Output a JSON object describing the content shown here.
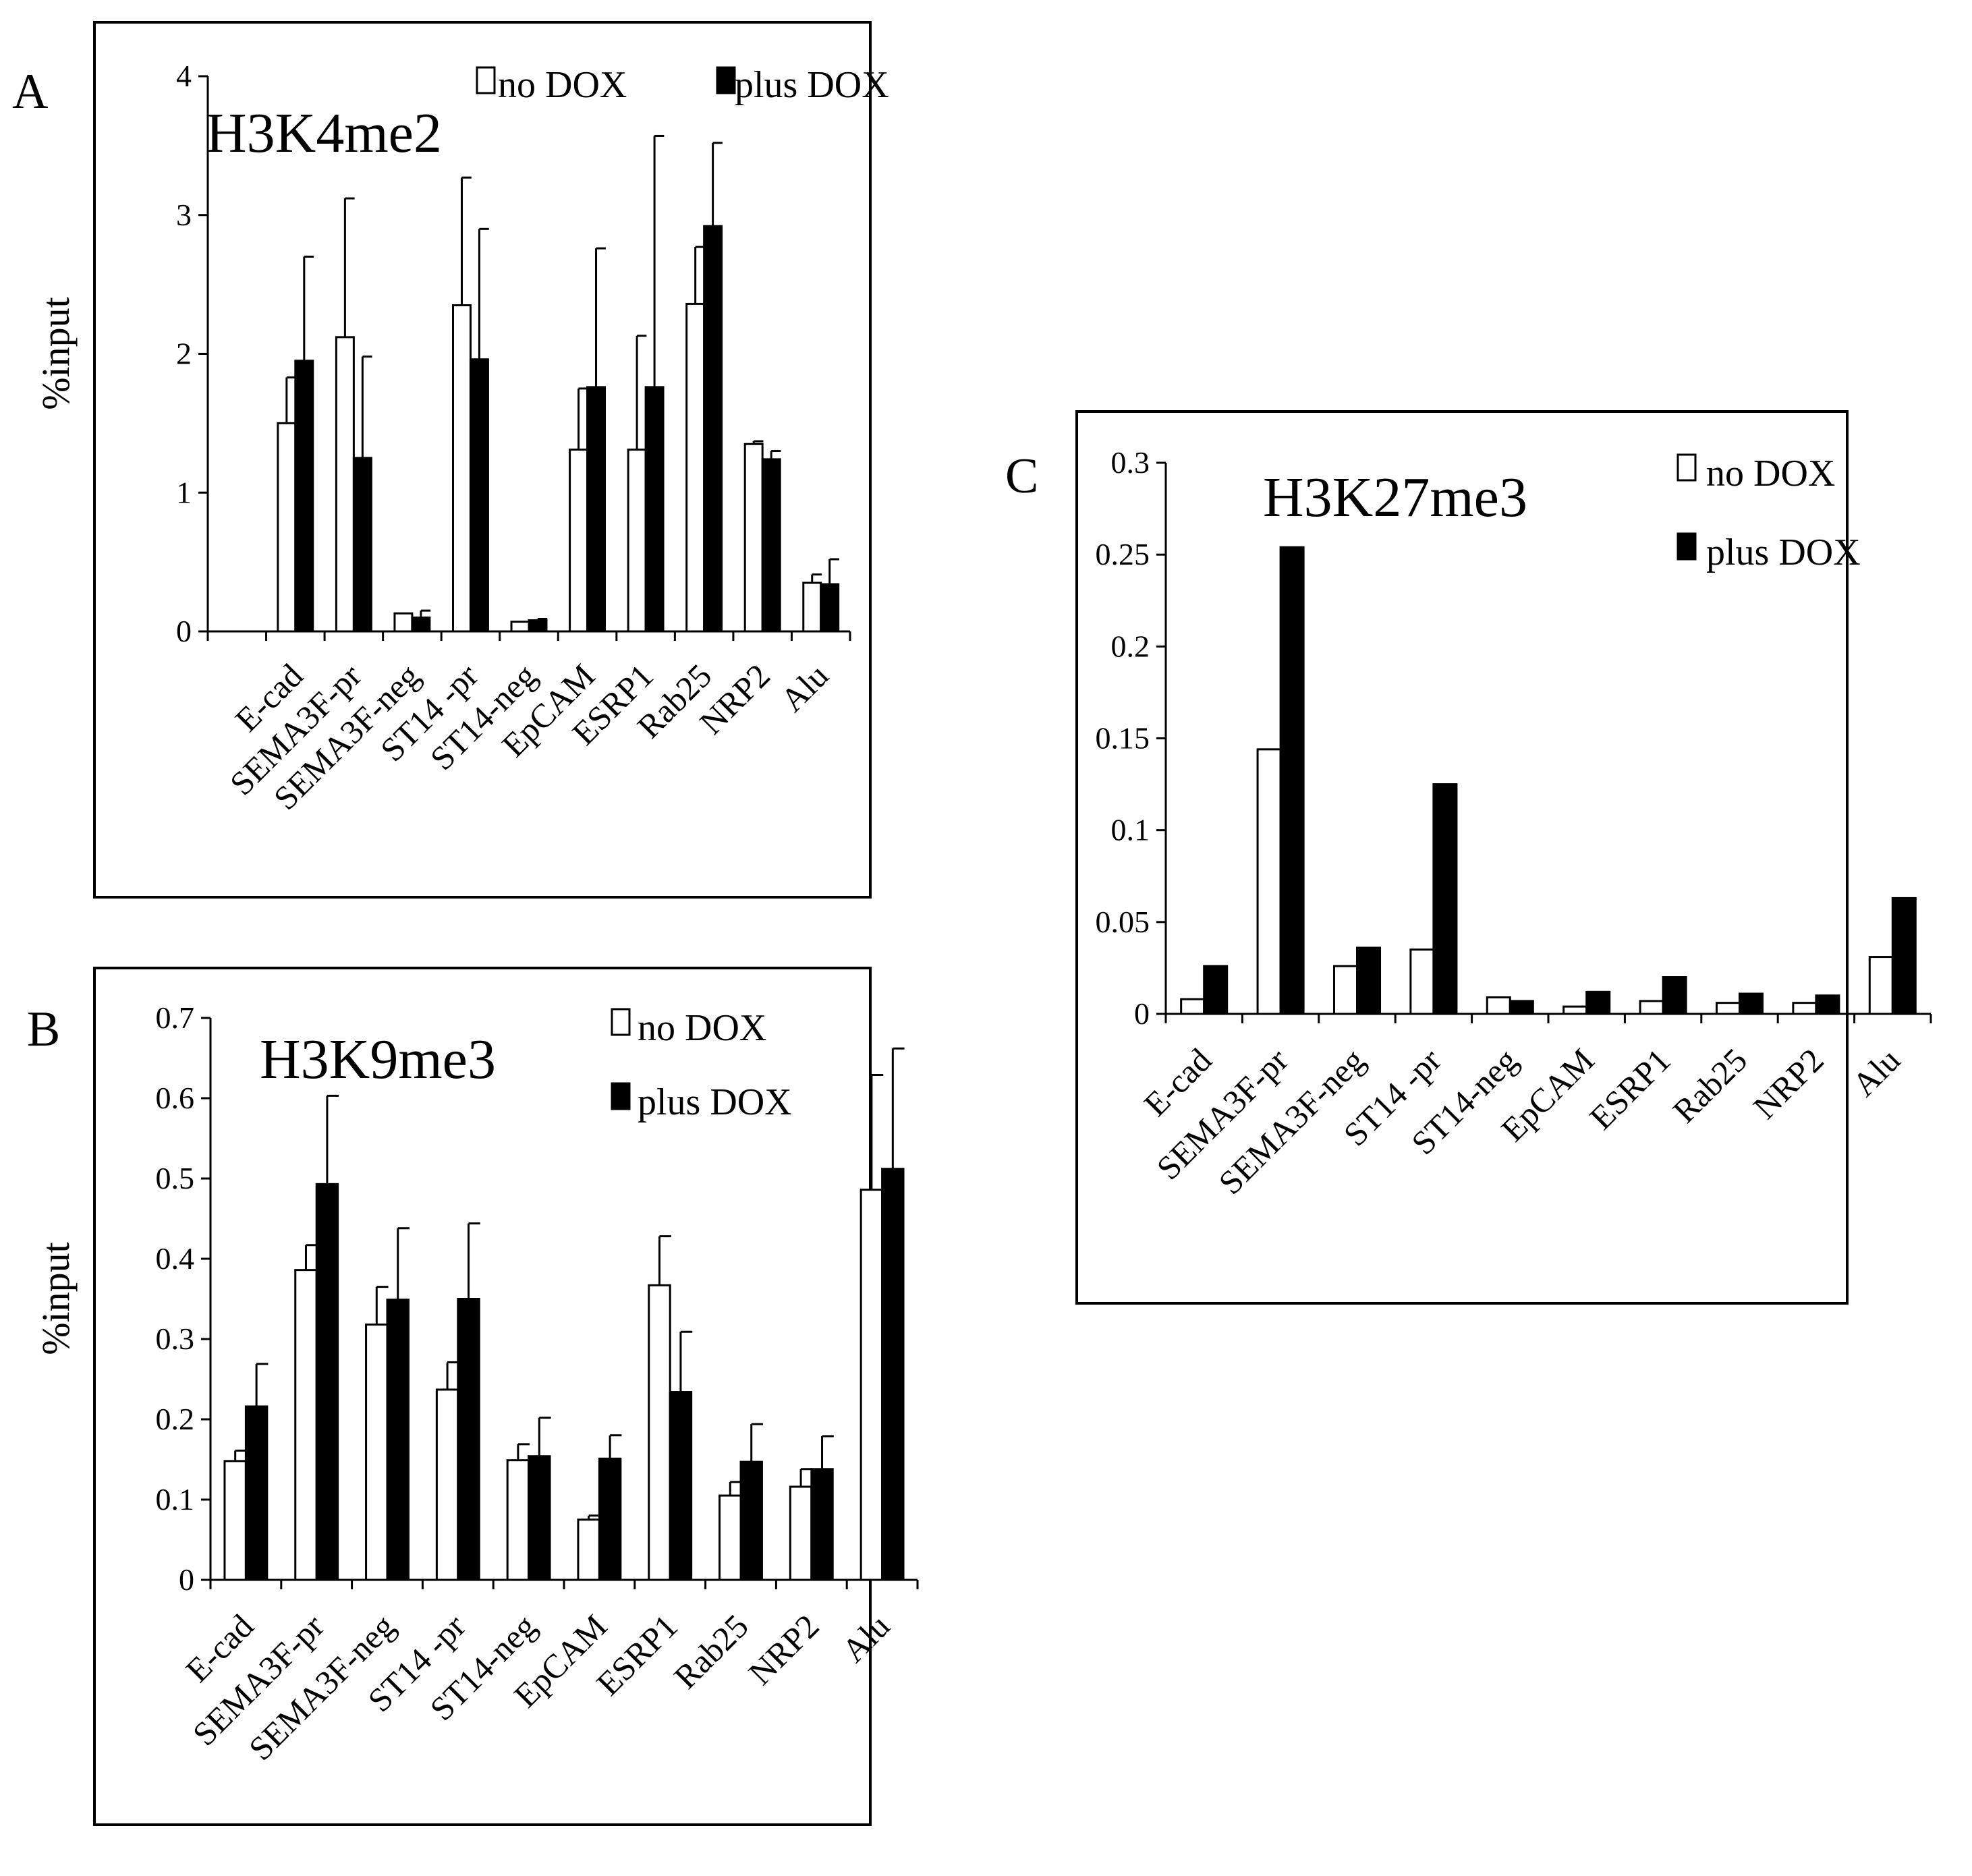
{
  "chart_data": [
    {
      "panel": "A",
      "type": "bar",
      "title": "H3K4me2",
      "ylabel": "%input",
      "xlabel": "",
      "ylim": [
        0,
        4
      ],
      "yticks": [
        "0",
        "1",
        "2",
        "3",
        "4"
      ],
      "categories": [
        "E-cad",
        "SEMA3F-pr",
        "SEMA3F-neg",
        "ST14 -pr",
        "ST14-neg",
        "EpCAM",
        "ESRP1",
        "Rab25",
        "NRP2",
        "Alu"
      ],
      "series": [
        {
          "name": "no DOX",
          "color": "#ffffff",
          "values": [
            1.5,
            2.12,
            0.13,
            2.35,
            0.07,
            1.31,
            1.31,
            2.36,
            1.35,
            0.35
          ],
          "errors": [
            0.33,
            1.0,
            0.0,
            0.92,
            0.0,
            0.44,
            0.82,
            0.41,
            0.02,
            0.06
          ]
        },
        {
          "name": "plus DOX",
          "color": "#000000",
          "values": [
            1.95,
            1.25,
            0.1,
            1.96,
            0.08,
            1.76,
            1.76,
            2.92,
            1.24,
            0.34
          ],
          "errors": [
            0.75,
            0.73,
            0.05,
            0.94,
            0.01,
            1.0,
            1.81,
            0.6,
            0.06,
            0.18
          ]
        }
      ],
      "legend": "top-right"
    },
    {
      "panel": "B",
      "type": "bar",
      "title": "H3K9me3",
      "ylabel": "%input",
      "xlabel": "",
      "ylim": [
        0,
        0.7
      ],
      "yticks": [
        "0",
        "0.1",
        "0.2",
        "0.3",
        "0.4",
        "0.5",
        "0.6",
        "0.7"
      ],
      "categories": [
        "E-cad",
        "SEMA3F-pr",
        "SEMA3F-neg",
        "ST14 -pr",
        "ST14-neg",
        "EpCAM",
        "ESRP1",
        "Rab25",
        "NRP2",
        "Alu"
      ],
      "series": [
        {
          "name": "no DOX",
          "color": "#ffffff",
          "values": [
            0.148,
            0.386,
            0.318,
            0.237,
            0.149,
            0.075,
            0.367,
            0.105,
            0.116,
            0.486
          ],
          "errors": [
            0.013,
            0.031,
            0.047,
            0.034,
            0.02,
            0.005,
            0.061,
            0.017,
            0.022,
            0.143
          ]
        },
        {
          "name": "plus DOX",
          "color": "#000000",
          "values": [
            0.216,
            0.493,
            0.349,
            0.35,
            0.154,
            0.151,
            0.234,
            0.147,
            0.138,
            0.512
          ],
          "errors": [
            0.053,
            0.11,
            0.089,
            0.094,
            0.048,
            0.029,
            0.075,
            0.047,
            0.041,
            0.15
          ]
        }
      ],
      "legend": "top-right"
    },
    {
      "panel": "C",
      "type": "bar",
      "title": "H3K27me3",
      "ylabel": "",
      "xlabel": "",
      "ylim": [
        0,
        0.3
      ],
      "yticks": [
        "0",
        "0.05",
        "0.1",
        "0.15",
        "0.2",
        "0.25",
        "0.3"
      ],
      "categories": [
        "E-cad",
        "SEMA3F-pr",
        "SEMA3F-neg",
        "ST14 -pr",
        "ST14-neg",
        "EpCAM",
        "ESRP1",
        "Rab25",
        "NRP2",
        "Alu"
      ],
      "series": [
        {
          "name": "no DOX",
          "color": "#ffffff",
          "values": [
            0.008,
            0.144,
            0.026,
            0.035,
            0.009,
            0.004,
            0.007,
            0.006,
            0.006,
            0.031
          ],
          "errors": []
        },
        {
          "name": "plus DOX",
          "color": "#000000",
          "values": [
            0.026,
            0.254,
            0.036,
            0.125,
            0.007,
            0.012,
            0.02,
            0.011,
            0.01,
            0.063
          ],
          "errors": []
        }
      ],
      "legend": "top-right"
    }
  ]
}
